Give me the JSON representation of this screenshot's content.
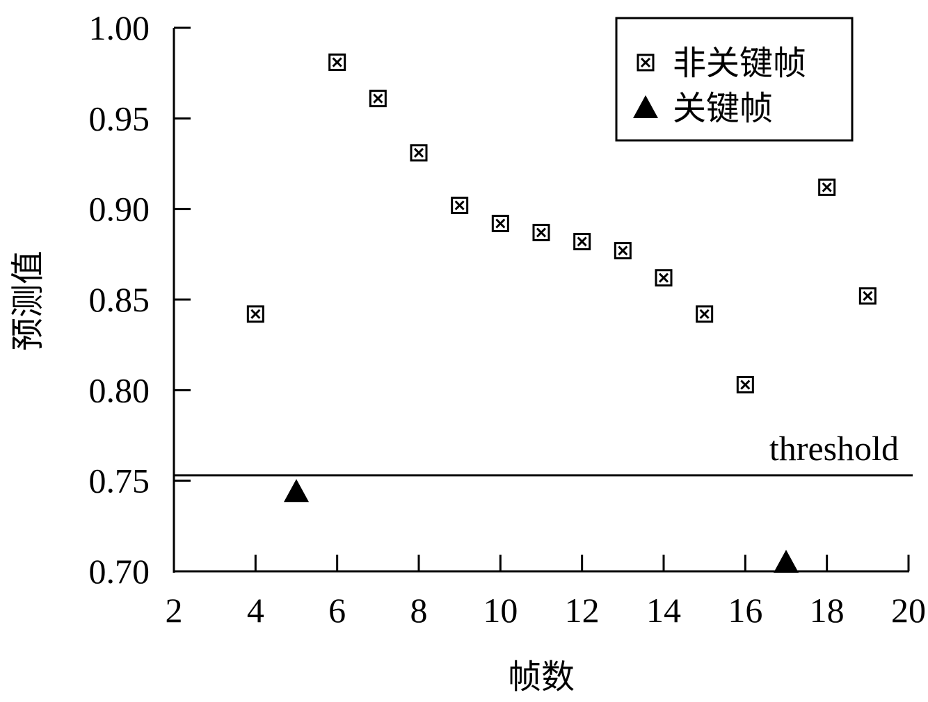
{
  "chart_data": {
    "type": "scatter",
    "xlabel": "帧数",
    "ylabel": "预测值",
    "xlim": [
      2,
      20
    ],
    "ylim": [
      0.7,
      1.0
    ],
    "x_ticks": [
      "2",
      "4",
      "6",
      "8",
      "10",
      "12",
      "14",
      "16",
      "18",
      "20"
    ],
    "y_ticks": [
      "0.70",
      "0.75",
      "0.80",
      "0.85",
      "0.90",
      "0.95",
      "1.00"
    ],
    "series": [
      {
        "name": "非关键帧",
        "marker": "boxed-x-square",
        "points": [
          {
            "x": 4,
            "y": 0.842
          },
          {
            "x": 6,
            "y": 0.981
          },
          {
            "x": 7,
            "y": 0.961
          },
          {
            "x": 8,
            "y": 0.931
          },
          {
            "x": 9,
            "y": 0.902
          },
          {
            "x": 10,
            "y": 0.892
          },
          {
            "x": 11,
            "y": 0.887
          },
          {
            "x": 12,
            "y": 0.882
          },
          {
            "x": 13,
            "y": 0.877
          },
          {
            "x": 14,
            "y": 0.862
          },
          {
            "x": 15,
            "y": 0.842
          },
          {
            "x": 16,
            "y": 0.803
          },
          {
            "x": 18,
            "y": 0.912
          },
          {
            "x": 19,
            "y": 0.852
          }
        ]
      },
      {
        "name": "关键帧",
        "marker": "filled-triangle",
        "points": [
          {
            "x": 5,
            "y": 0.744
          },
          {
            "x": 17,
            "y": 0.705
          }
        ]
      }
    ],
    "threshold": {
      "label": "threshold",
      "y": 0.753
    },
    "legend": {
      "position": "top-right"
    },
    "grid": false,
    "colors": {
      "marker": "#000000",
      "background": "#ffffff"
    }
  }
}
